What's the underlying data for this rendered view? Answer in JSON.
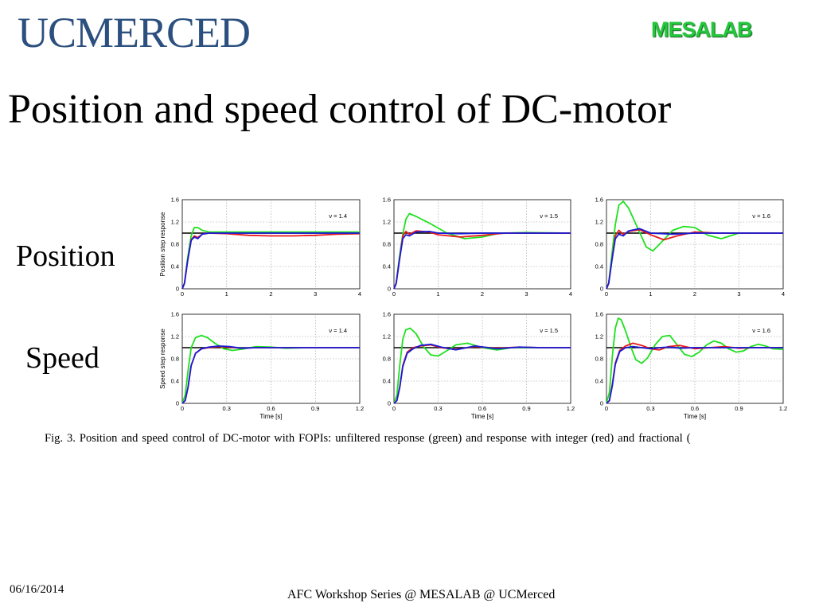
{
  "header": {
    "logo_text": "UCMERCED",
    "lab_text": "MESALAB"
  },
  "slide": {
    "title": "Position and speed control of DC-motor"
  },
  "row_labels": {
    "position": "Position",
    "speed": "Speed"
  },
  "caption": "Fig. 3.   Position and speed control of DC-motor with FOPIs: unfiltered response (green) and response with integer (red) and fractional (",
  "footer": {
    "date": "06/16/2014",
    "center": "AFC Workshop Series @ MESALAB @ UCMerced"
  },
  "colors": {
    "green": "#1fe01f",
    "red": "#e81a1a",
    "blue": "#1a1ad8",
    "reference": "#000000"
  },
  "chart_data": [
    {
      "id": "pos-1.4",
      "type": "line",
      "ylabel": "Position step response",
      "annotation": "ν = 1.4",
      "xlim": [
        0,
        4
      ],
      "ylim": [
        0,
        1.6
      ],
      "xticks": [
        "0",
        "1",
        "2",
        "3",
        "4"
      ],
      "yticks": [
        "0",
        "0.4",
        "0.8",
        "1.2",
        "1.6"
      ],
      "grid": true,
      "reference": 1.0,
      "series": [
        {
          "color": "green",
          "x": [
            0,
            0.05,
            0.12,
            0.2,
            0.27,
            0.35,
            0.45,
            0.6,
            0.8,
            1.2,
            2,
            4
          ],
          "y": [
            0,
            0.1,
            0.55,
            0.95,
            1.1,
            1.1,
            1.05,
            1.02,
            1.02,
            1.02,
            1.02,
            1.02
          ]
        },
        {
          "color": "red",
          "x": [
            0,
            0.05,
            0.12,
            0.2,
            0.27,
            0.35,
            0.45,
            0.6,
            1,
            1.5,
            2,
            2.5,
            3,
            3.5,
            4
          ],
          "y": [
            0,
            0.1,
            0.5,
            0.88,
            0.95,
            0.92,
            0.98,
            1.0,
            0.99,
            0.96,
            0.95,
            0.95,
            0.96,
            0.98,
            0.99
          ]
        },
        {
          "color": "blue",
          "x": [
            0,
            0.05,
            0.12,
            0.2,
            0.27,
            0.35,
            0.45,
            0.6,
            1,
            2,
            4
          ],
          "y": [
            0,
            0.1,
            0.5,
            0.87,
            0.93,
            0.9,
            0.98,
            1.0,
            1.0,
            1.0,
            1.0
          ]
        }
      ]
    },
    {
      "id": "pos-1.5",
      "type": "line",
      "ylabel": "",
      "annotation": "ν = 1.5",
      "xlim": [
        0,
        4
      ],
      "ylim": [
        0,
        1.6
      ],
      "xticks": [
        "0",
        "1",
        "2",
        "3",
        "4"
      ],
      "yticks": [
        "0",
        "0.4",
        "0.8",
        "1.2",
        "1.6"
      ],
      "grid": true,
      "reference": 1.0,
      "series": [
        {
          "color": "green",
          "x": [
            0,
            0.05,
            0.12,
            0.2,
            0.27,
            0.35,
            0.5,
            0.8,
            1.2,
            1.6,
            2,
            2.4,
            3,
            4
          ],
          "y": [
            0,
            0.1,
            0.55,
            0.98,
            1.25,
            1.35,
            1.3,
            1.18,
            1.0,
            0.9,
            0.93,
            1.0,
            1.01,
            1.0
          ]
        },
        {
          "color": "red",
          "x": [
            0,
            0.05,
            0.12,
            0.2,
            0.27,
            0.35,
            0.5,
            0.8,
            1.0,
            1.5,
            2,
            2.5,
            3,
            4
          ],
          "y": [
            0,
            0.1,
            0.5,
            0.95,
            1.03,
            0.98,
            1.04,
            1.02,
            0.97,
            0.93,
            0.96,
            1.0,
            1.0,
            1.0
          ]
        },
        {
          "color": "blue",
          "x": [
            0,
            0.05,
            0.12,
            0.2,
            0.27,
            0.35,
            0.5,
            0.8,
            1,
            1.5,
            2,
            4
          ],
          "y": [
            0,
            0.1,
            0.5,
            0.9,
            0.97,
            0.95,
            1.02,
            1.03,
            1.0,
            0.99,
            1.0,
            1.0
          ]
        }
      ]
    },
    {
      "id": "pos-1.6",
      "type": "line",
      "ylabel": "",
      "annotation": "ν = 1.6",
      "xlim": [
        0,
        4
      ],
      "ylim": [
        0,
        1.6
      ],
      "xticks": [
        "0",
        "1",
        "2",
        "3",
        "4"
      ],
      "yticks": [
        "0",
        "0.4",
        "0.8",
        "1.2",
        "1.6"
      ],
      "grid": true,
      "reference": 1.0,
      "series": [
        {
          "color": "green",
          "x": [
            0,
            0.05,
            0.12,
            0.2,
            0.28,
            0.38,
            0.5,
            0.7,
            0.9,
            1.05,
            1.2,
            1.5,
            1.75,
            2.0,
            2.3,
            2.6,
            3,
            3.5,
            4
          ],
          "y": [
            0,
            0.1,
            0.6,
            1.15,
            1.5,
            1.57,
            1.45,
            1.1,
            0.75,
            0.68,
            0.8,
            1.05,
            1.12,
            1.1,
            0.96,
            0.9,
            1.0,
            1.0,
            1.0
          ]
        },
        {
          "color": "red",
          "x": [
            0,
            0.05,
            0.12,
            0.2,
            0.28,
            0.38,
            0.5,
            0.75,
            1.0,
            1.3,
            1.6,
            2,
            2.5,
            3,
            4
          ],
          "y": [
            0,
            0.1,
            0.5,
            0.95,
            1.05,
            0.98,
            1.03,
            1.06,
            0.97,
            0.88,
            0.95,
            1.02,
            1.0,
            1.0,
            1.0
          ]
        },
        {
          "color": "blue",
          "x": [
            0,
            0.05,
            0.12,
            0.2,
            0.28,
            0.38,
            0.5,
            0.75,
            1.0,
            1.5,
            2,
            4
          ],
          "y": [
            0,
            0.1,
            0.5,
            0.9,
            0.98,
            0.95,
            1.04,
            1.08,
            1.0,
            0.98,
            1.0,
            1.0
          ]
        }
      ]
    },
    {
      "id": "spd-1.4",
      "type": "line",
      "ylabel": "Speed step response",
      "xlabel": "Time [s]",
      "annotation": "ν = 1.4",
      "xlim": [
        0,
        1.2
      ],
      "ylim": [
        0,
        1.6
      ],
      "xticks": [
        "0",
        "0.3",
        "0.6",
        "0.9",
        "1.2"
      ],
      "yticks": [
        "0",
        "0.4",
        "0.8",
        "1.2",
        "1.6"
      ],
      "grid": true,
      "reference": 1.0,
      "series": [
        {
          "color": "green",
          "x": [
            0,
            0.02,
            0.04,
            0.06,
            0.09,
            0.13,
            0.17,
            0.22,
            0.28,
            0.34,
            0.42,
            0.5,
            0.6,
            0.7,
            0.85,
            1.0,
            1.2
          ],
          "y": [
            0,
            0.15,
            0.6,
            1.0,
            1.18,
            1.22,
            1.18,
            1.08,
            0.98,
            0.95,
            0.98,
            1.02,
            1.01,
            0.99,
            1.0,
            1.0,
            1.0
          ]
        },
        {
          "color": "red",
          "x": [
            0,
            0.02,
            0.04,
            0.06,
            0.09,
            0.13,
            0.18,
            0.25,
            0.32,
            0.4,
            0.5,
            0.6,
            0.8,
            1.2
          ],
          "y": [
            0,
            0.05,
            0.3,
            0.68,
            0.9,
            0.98,
            1.0,
            1.02,
            1.01,
            0.99,
            1.0,
            1.0,
            1.0,
            1.0
          ]
        },
        {
          "color": "blue",
          "x": [
            0,
            0.02,
            0.04,
            0.06,
            0.09,
            0.13,
            0.18,
            0.25,
            0.32,
            0.4,
            0.5,
            0.6,
            0.8,
            1.2
          ],
          "y": [
            0,
            0.05,
            0.3,
            0.68,
            0.9,
            0.98,
            1.01,
            1.03,
            1.02,
            0.99,
            1.0,
            1.0,
            1.0,
            1.0
          ]
        }
      ]
    },
    {
      "id": "spd-1.5",
      "type": "line",
      "ylabel": "",
      "xlabel": "Time [s]",
      "annotation": "ν = 1.5",
      "xlim": [
        0,
        1.2
      ],
      "ylim": [
        0,
        1.6
      ],
      "xticks": [
        "0",
        "0.3",
        "0.6",
        "0.9",
        "1.2"
      ],
      "yticks": [
        "0",
        "0.4",
        "0.8",
        "1.2",
        "1.6"
      ],
      "grid": true,
      "reference": 1.0,
      "series": [
        {
          "color": "green",
          "x": [
            0,
            0.02,
            0.04,
            0.06,
            0.08,
            0.11,
            0.15,
            0.2,
            0.25,
            0.3,
            0.35,
            0.42,
            0.5,
            0.6,
            0.7,
            0.8,
            1.0,
            1.2
          ],
          "y": [
            0,
            0.15,
            0.7,
            1.15,
            1.32,
            1.35,
            1.25,
            1.02,
            0.87,
            0.85,
            0.93,
            1.05,
            1.08,
            1.0,
            0.96,
            1.0,
            1.0,
            1.0
          ]
        },
        {
          "color": "red",
          "x": [
            0,
            0.02,
            0.04,
            0.06,
            0.09,
            0.13,
            0.18,
            0.25,
            0.32,
            0.42,
            0.55,
            0.7,
            0.85,
            1.0,
            1.2
          ],
          "y": [
            0,
            0.05,
            0.3,
            0.68,
            0.92,
            1.0,
            1.03,
            1.05,
            1.0,
            0.97,
            1.02,
            0.99,
            1.01,
            1.0,
            1.0
          ]
        },
        {
          "color": "blue",
          "x": [
            0,
            0.02,
            0.04,
            0.06,
            0.09,
            0.13,
            0.18,
            0.25,
            0.32,
            0.42,
            0.55,
            0.7,
            0.85,
            1.0,
            1.2
          ],
          "y": [
            0,
            0.05,
            0.3,
            0.66,
            0.9,
            0.98,
            1.04,
            1.06,
            1.01,
            0.96,
            1.03,
            0.98,
            1.01,
            1.0,
            1.0
          ]
        }
      ]
    },
    {
      "id": "spd-1.6",
      "type": "line",
      "ylabel": "",
      "xlabel": "Time [s]",
      "annotation": "ν = 1.6",
      "xlim": [
        0,
        1.2
      ],
      "ylim": [
        0,
        1.6
      ],
      "xticks": [
        "0",
        "0.3",
        "0.6",
        "0.9",
        "1.2"
      ],
      "yticks": [
        "0",
        "0.4",
        "0.8",
        "1.2",
        "1.6"
      ],
      "grid": true,
      "reference": 1.0,
      "series": [
        {
          "color": "green",
          "x": [
            0,
            0.02,
            0.04,
            0.06,
            0.08,
            0.1,
            0.13,
            0.17,
            0.2,
            0.24,
            0.28,
            0.33,
            0.38,
            0.43,
            0.48,
            0.53,
            0.58,
            0.63,
            0.68,
            0.73,
            0.78,
            0.83,
            0.88,
            0.93,
            0.98,
            1.03,
            1.08,
            1.13,
            1.2
          ],
          "y": [
            0,
            0.2,
            0.85,
            1.35,
            1.53,
            1.5,
            1.3,
            0.98,
            0.78,
            0.72,
            0.82,
            1.05,
            1.2,
            1.22,
            1.05,
            0.88,
            0.84,
            0.92,
            1.05,
            1.12,
            1.08,
            0.98,
            0.92,
            0.94,
            1.02,
            1.06,
            1.03,
            0.98,
            0.97
          ]
        },
        {
          "color": "red",
          "x": [
            0,
            0.02,
            0.04,
            0.06,
            0.09,
            0.13,
            0.18,
            0.24,
            0.3,
            0.36,
            0.42,
            0.5,
            0.6,
            0.7,
            0.8,
            0.9,
            1.0,
            1.1,
            1.2
          ],
          "y": [
            0,
            0.05,
            0.35,
            0.72,
            0.95,
            1.03,
            1.08,
            1.04,
            0.98,
            0.96,
            1.02,
            1.04,
            0.98,
            1.0,
            1.02,
            0.99,
            1.0,
            1.0,
            1.0
          ]
        },
        {
          "color": "blue",
          "x": [
            0,
            0.02,
            0.04,
            0.06,
            0.09,
            0.13,
            0.18,
            0.24,
            0.3,
            0.36,
            0.42,
            0.5,
            0.6,
            0.7,
            0.8,
            0.9,
            1.0,
            1.1,
            1.2
          ],
          "y": [
            0,
            0.05,
            0.32,
            0.7,
            0.93,
            1.0,
            1.02,
            1.0,
            0.98,
            1.0,
            1.01,
            0.99,
            1.0,
            1.0,
            1.0,
            1.0,
            1.0,
            1.0,
            1.0
          ]
        }
      ]
    }
  ]
}
